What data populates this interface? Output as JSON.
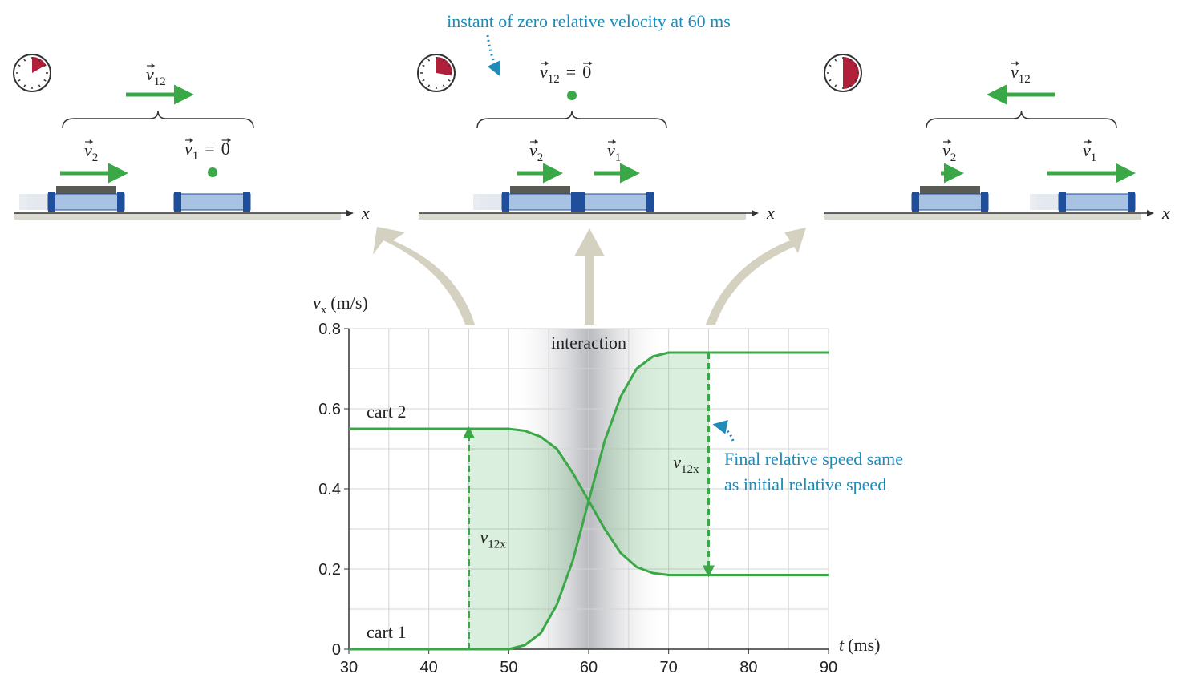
{
  "chart_data": {
    "type": "line",
    "x_label": {
      "symbol": "t",
      "unit": "(ms)"
    },
    "y_label": {
      "symbol": "v",
      "subscript": "x",
      "unit": "(m/s)"
    },
    "x": [
      30,
      50,
      52,
      54,
      56,
      58,
      60,
      62,
      64,
      66,
      68,
      70,
      90
    ],
    "series": [
      {
        "name": "cart 1",
        "color": "#3aa847",
        "values": [
          0,
          0,
          0.01,
          0.04,
          0.11,
          0.22,
          0.37,
          0.52,
          0.63,
          0.7,
          0.73,
          0.74,
          0.74
        ]
      },
      {
        "name": "cart 2",
        "color": "#3aa847",
        "values": [
          0.55,
          0.55,
          0.545,
          0.53,
          0.5,
          0.44,
          0.37,
          0.3,
          0.24,
          0.205,
          0.19,
          0.185,
          0.185
        ]
      }
    ],
    "xlim": [
      30,
      90
    ],
    "xticks": [
      30,
      40,
      50,
      60,
      70,
      80,
      90
    ],
    "ylim": [
      0,
      0.8
    ],
    "yticks": [
      0,
      0.2,
      0.4,
      0.6,
      0.8
    ],
    "grid": true,
    "interaction": {
      "label": "interaction",
      "xlim": [
        50,
        70
      ]
    },
    "relative_velocity": [
      {
        "x": 45,
        "label": {
          "symbol": "v",
          "subscript": "12x"
        }
      },
      {
        "x": 75,
        "label": {
          "symbol": "v",
          "subscript": "12x"
        }
      }
    ],
    "annotation_lines": [
      "Final relative speed same",
      "as initial relative speed"
    ]
  },
  "top_annotation": "instant of zero relative velocity at 60 ms",
  "axis_label": "x",
  "panels": [
    {
      "labels": [
        {
          "symbol": "v",
          "subscript": "12"
        },
        {
          "symbol": "v",
          "subscript": "2"
        },
        {
          "symbol": "v",
          "subscript": "1",
          "equals": "=",
          "rhs": "0"
        }
      ]
    },
    {
      "labels": [
        {
          "symbol": "v",
          "subscript": "12",
          "equals": "=",
          "rhs": "0"
        },
        {
          "symbol": "v",
          "subscript": "2"
        },
        {
          "symbol": "v",
          "subscript": "1"
        }
      ]
    },
    {
      "labels": [
        {
          "symbol": "v",
          "subscript": "12"
        },
        {
          "symbol": "v",
          "subscript": "2"
        },
        {
          "symbol": "v",
          "subscript": "1"
        }
      ]
    }
  ]
}
